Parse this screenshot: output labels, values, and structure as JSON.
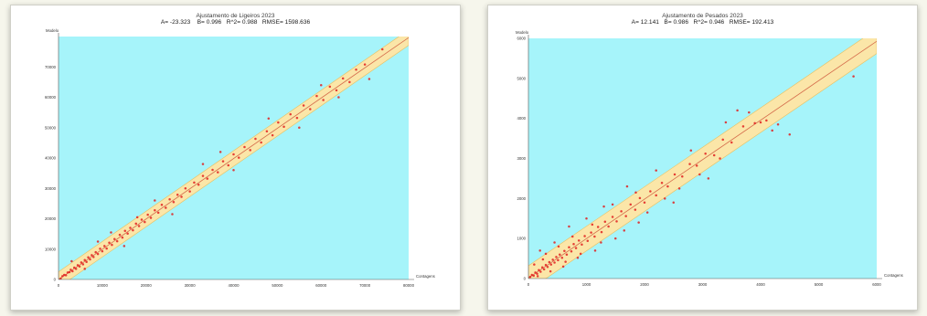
{
  "chart_data": [
    {
      "type": "scatter",
      "title": "Ajustamento de Ligeiros 2023",
      "stats": {
        "a": "A= -23.323",
        "b": "B= 0.996",
        "r2": "R^2= 0.988",
        "rmse": "RMSE= 1598.636"
      },
      "xlabel": "Contagens",
      "ylabel": "Modelo",
      "xlim": [
        0,
        80000
      ],
      "ylim": [
        0,
        80000
      ],
      "xticks": [
        "0",
        "10000",
        "20000",
        "30000",
        "40000",
        "50000",
        "60000",
        "70000",
        "80000"
      ],
      "yticks": [
        "0",
        "10000",
        "20000",
        "30000",
        "40000",
        "50000",
        "60000",
        "70000"
      ],
      "fit_line": {
        "intercept": -23.323,
        "slope": 0.996
      },
      "band_halfwidth": 1598.636,
      "points": [
        [
          500,
          300
        ],
        [
          900,
          1100
        ],
        [
          1300,
          1500
        ],
        [
          1700,
          1400
        ],
        [
          2100,
          2300
        ],
        [
          2500,
          2400
        ],
        [
          2800,
          3200
        ],
        [
          3200,
          2700
        ],
        [
          3600,
          3900
        ],
        [
          4000,
          3500
        ],
        [
          4400,
          4700
        ],
        [
          4800,
          4300
        ],
        [
          5200,
          5600
        ],
        [
          5600,
          5000
        ],
        [
          6000,
          6400
        ],
        [
          6400,
          5800
        ],
        [
          6800,
          7300
        ],
        [
          7200,
          6600
        ],
        [
          7600,
          8000
        ],
        [
          8000,
          7400
        ],
        [
          8500,
          9000
        ],
        [
          9000,
          8400
        ],
        [
          9500,
          10100
        ],
        [
          10000,
          9300
        ],
        [
          10500,
          11000
        ],
        [
          11000,
          10200
        ],
        [
          11600,
          12100
        ],
        [
          12200,
          11400
        ],
        [
          12800,
          13300
        ],
        [
          13400,
          12600
        ],
        [
          14000,
          14700
        ],
        [
          14600,
          13800
        ],
        [
          15200,
          16000
        ],
        [
          15800,
          15100
        ],
        [
          16400,
          17000
        ],
        [
          17000,
          16200
        ],
        [
          17700,
          18400
        ],
        [
          18400,
          17600
        ],
        [
          19000,
          19700
        ],
        [
          19700,
          18900
        ],
        [
          20400,
          21300
        ],
        [
          21100,
          20300
        ],
        [
          22000,
          22800
        ],
        [
          22800,
          22000
        ],
        [
          23600,
          24600
        ],
        [
          24500,
          23600
        ],
        [
          25400,
          26400
        ],
        [
          26300,
          25500
        ],
        [
          27200,
          27900
        ],
        [
          28100,
          27200
        ],
        [
          29000,
          30000
        ],
        [
          30000,
          29000
        ],
        [
          31000,
          31900
        ],
        [
          32000,
          31200
        ],
        [
          33000,
          34100
        ],
        [
          34000,
          33200
        ],
        [
          35200,
          36100
        ],
        [
          36400,
          35300
        ],
        [
          37600,
          38900
        ],
        [
          38800,
          37600
        ],
        [
          40000,
          41200
        ],
        [
          41200,
          40100
        ],
        [
          42500,
          43600
        ],
        [
          43800,
          42600
        ],
        [
          45000,
          46300
        ],
        [
          46300,
          45100
        ],
        [
          47600,
          48800
        ],
        [
          48900,
          47500
        ],
        [
          50200,
          51700
        ],
        [
          51500,
          50300
        ],
        [
          53000,
          54400
        ],
        [
          54500,
          53200
        ],
        [
          56000,
          57300
        ],
        [
          57500,
          56100
        ],
        [
          59000,
          60400
        ],
        [
          60500,
          59100
        ],
        [
          62000,
          63500
        ],
        [
          63500,
          62300
        ],
        [
          65000,
          66200
        ],
        [
          66500,
          65000
        ],
        [
          68000,
          69100
        ],
        [
          70000,
          70800
        ],
        [
          74000,
          75800
        ],
        [
          3000,
          6000
        ],
        [
          6000,
          3500
        ],
        [
          12000,
          15500
        ],
        [
          15000,
          11000
        ],
        [
          22000,
          26000
        ],
        [
          26000,
          21500
        ],
        [
          33000,
          38000
        ],
        [
          40000,
          36000
        ],
        [
          48000,
          53000
        ],
        [
          55000,
          50000
        ],
        [
          60000,
          64000
        ],
        [
          64000,
          60000
        ],
        [
          71000,
          66000
        ],
        [
          18000,
          20500
        ],
        [
          9000,
          12500
        ],
        [
          37000,
          42000
        ]
      ]
    },
    {
      "type": "scatter",
      "title": "Ajustamento de Pesados 2023",
      "stats": {
        "a": "A= 12.141",
        "b": "B= 0.986",
        "r2": "R^2= 0.946",
        "rmse": "RMSE= 192.413"
      },
      "xlabel": "Contagens",
      "ylabel": "Modelo",
      "xlim": [
        0,
        6000
      ],
      "ylim": [
        0,
        6000
      ],
      "xticks": [
        "0",
        "1000",
        "2000",
        "3000",
        "4000",
        "5000",
        "6000"
      ],
      "yticks": [
        "0",
        "1000",
        "2000",
        "3000",
        "4000",
        "5000",
        "6000"
      ],
      "fit_line": {
        "intercept": 12.141,
        "slope": 0.986
      },
      "band_halfwidth": 192.413,
      "points": [
        [
          30,
          40
        ],
        [
          60,
          90
        ],
        [
          90,
          70
        ],
        [
          120,
          150
        ],
        [
          150,
          120
        ],
        [
          180,
          210
        ],
        [
          210,
          170
        ],
        [
          240,
          280
        ],
        [
          270,
          230
        ],
        [
          300,
          340
        ],
        [
          330,
          290
        ],
        [
          360,
          410
        ],
        [
          390,
          350
        ],
        [
          420,
          470
        ],
        [
          450,
          400
        ],
        [
          480,
          540
        ],
        [
          510,
          460
        ],
        [
          540,
          600
        ],
        [
          580,
          520
        ],
        [
          620,
          690
        ],
        [
          660,
          600
        ],
        [
          700,
          780
        ],
        [
          740,
          680
        ],
        [
          780,
          860
        ],
        [
          820,
          760
        ],
        [
          870,
          950
        ],
        [
          920,
          850
        ],
        [
          970,
          1060
        ],
        [
          1020,
          940
        ],
        [
          1080,
          1150
        ],
        [
          1140,
          1050
        ],
        [
          1200,
          1290
        ],
        [
          1260,
          1160
        ],
        [
          1320,
          1420
        ],
        [
          1380,
          1300
        ],
        [
          1450,
          1540
        ],
        [
          1520,
          1430
        ],
        [
          1600,
          1680
        ],
        [
          1680,
          1560
        ],
        [
          1760,
          1850
        ],
        [
          1840,
          1720
        ],
        [
          1920,
          2010
        ],
        [
          2000,
          1900
        ],
        [
          2100,
          2180
        ],
        [
          2200,
          2080
        ],
        [
          2300,
          2390
        ],
        [
          2400,
          2300
        ],
        [
          2520,
          2600
        ],
        [
          2650,
          2550
        ],
        [
          2780,
          2860
        ],
        [
          2900,
          2820
        ],
        [
          3050,
          3120
        ],
        [
          3200,
          3080
        ],
        [
          3350,
          3470
        ],
        [
          3500,
          3400
        ],
        [
          3700,
          3800
        ],
        [
          3900,
          3880
        ],
        [
          4100,
          3950
        ],
        [
          4300,
          3850
        ],
        [
          5600,
          5050
        ],
        [
          200,
          700
        ],
        [
          300,
          620
        ],
        [
          450,
          900
        ],
        [
          600,
          300
        ],
        [
          700,
          1300
        ],
        [
          850,
          520
        ],
        [
          1000,
          1500
        ],
        [
          1150,
          700
        ],
        [
          1300,
          1800
        ],
        [
          1500,
          1000
        ],
        [
          1700,
          2300
        ],
        [
          1900,
          1400
        ],
        [
          2200,
          2700
        ],
        [
          2500,
          1900
        ],
        [
          2800,
          3200
        ],
        [
          3100,
          2500
        ],
        [
          3400,
          3900
        ],
        [
          3600,
          4200
        ],
        [
          4200,
          3700
        ],
        [
          4500,
          3600
        ],
        [
          100,
          350
        ],
        [
          160,
          60
        ],
        [
          250,
          480
        ],
        [
          380,
          180
        ],
        [
          520,
          800
        ],
        [
          640,
          420
        ],
        [
          760,
          1050
        ],
        [
          900,
          620
        ],
        [
          1100,
          1350
        ],
        [
          1250,
          900
        ],
        [
          1450,
          1850
        ],
        [
          1650,
          1200
        ],
        [
          1850,
          2150
        ],
        [
          2050,
          1650
        ],
        [
          2350,
          2000
        ],
        [
          2600,
          2250
        ],
        [
          2950,
          2600
        ],
        [
          3300,
          3000
        ],
        [
          3800,
          4150
        ],
        [
          4000,
          3900
        ]
      ]
    }
  ]
}
